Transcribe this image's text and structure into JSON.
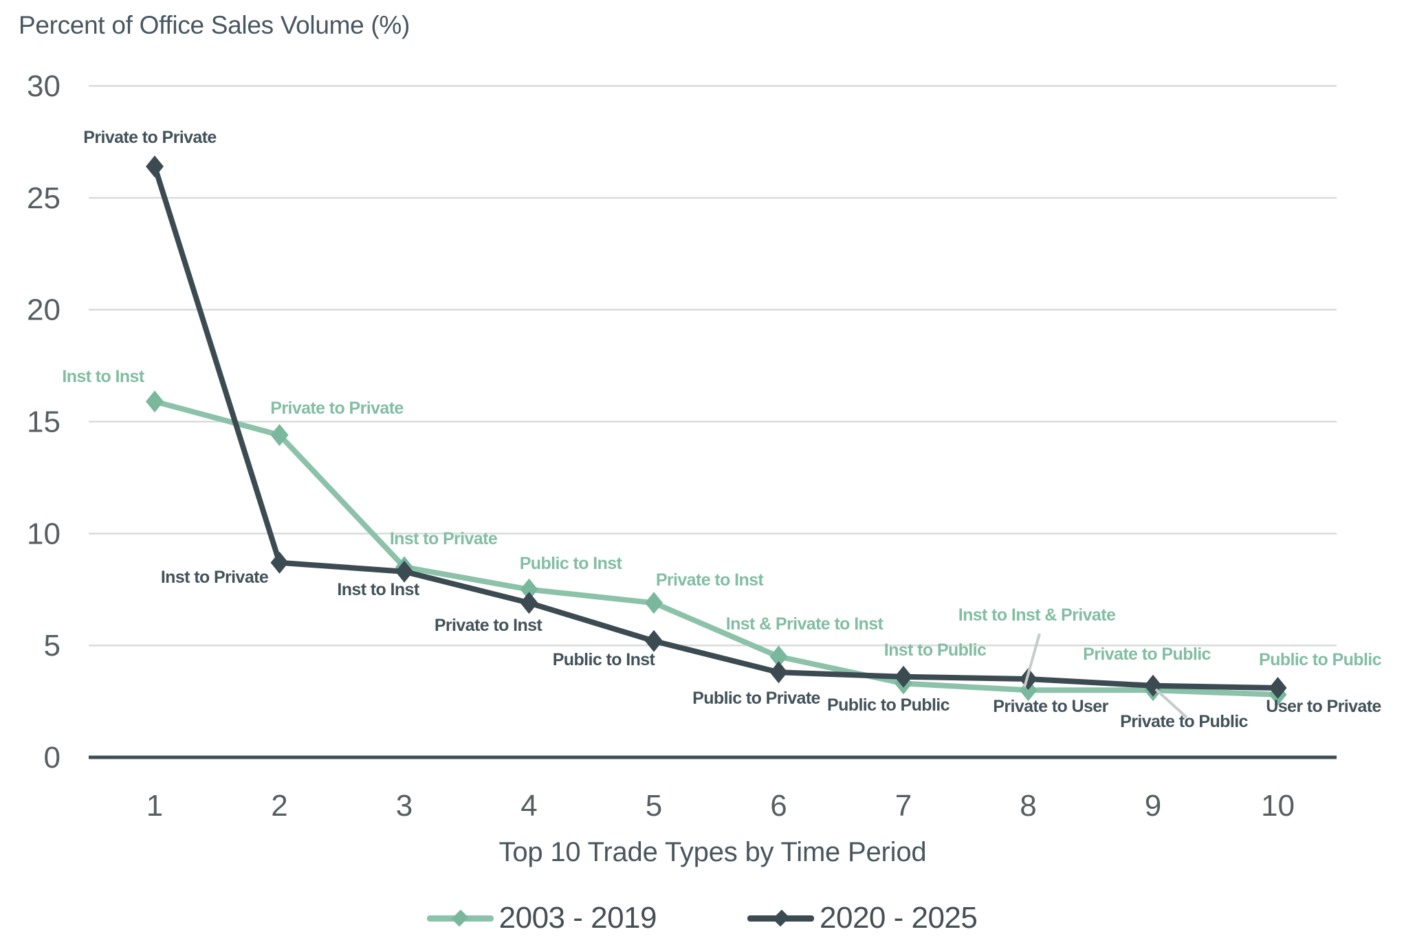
{
  "title": "Percent of Office Sales Volume (%)",
  "colors": {
    "background": "#FFFFFF",
    "gridline": "#D8DBDA",
    "axis_line": "#3E4D54",
    "tick_label": "#565E61",
    "title_text": "#475660",
    "axis_title_text": "#49565E",
    "legend_text": "#454F54",
    "leader_line": "#C5CCC9",
    "teal_accent": "#8CC2AA",
    "slate_accent": "#3C4B52"
  },
  "chart_data": {
    "type": "line",
    "title": "Percent of Office Sales Volume (%)",
    "xlabel": "Top 10 Trade Types by Time Period",
    "ylabel": "Percent of Office Sales Volume (%)",
    "x": [
      1,
      2,
      3,
      4,
      5,
      6,
      7,
      8,
      9,
      10
    ],
    "xtick_labels": [
      "1",
      "2",
      "3",
      "4",
      "5",
      "6",
      "7",
      "8",
      "9",
      "10"
    ],
    "ylim": [
      0,
      30
    ],
    "yticks": [
      0,
      5,
      10,
      15,
      20,
      25,
      30
    ],
    "grid": "horizontal-only",
    "legend_position": "bottom-center",
    "series": [
      {
        "name": "2003 - 2019",
        "color": "#8CC2AA",
        "marker_color": "#79B89D",
        "label_color": "#82BDA4",
        "marker": "diamond",
        "values": [
          15.9,
          14.4,
          8.5,
          7.5,
          6.9,
          4.5,
          3.3,
          3.0,
          3.0,
          2.8
        ],
        "point_labels": [
          "Inst to Inst",
          "Private to Private",
          "Inst to Private",
          "Public to Inst",
          "Private to Inst",
          "Inst & Private to Inst",
          "Inst to Public",
          "Inst to Inst & Private",
          "Private to Public",
          "Public to Public"
        ]
      },
      {
        "name": "2020 - 2025",
        "color": "#3C4B52",
        "marker_color": "#3C4B52",
        "label_color": "#43525A",
        "marker": "diamond",
        "values": [
          26.4,
          8.7,
          8.3,
          6.9,
          5.2,
          3.8,
          3.6,
          3.5,
          3.2,
          3.1
        ],
        "point_labels": [
          "Private to Private",
          "Inst to Private",
          "Inst to Inst",
          "Private to Inst",
          "Public to Inst",
          "Public to Private",
          "Public to Public",
          "Private to User",
          "Private to Public",
          "User to Private"
        ]
      }
    ]
  }
}
